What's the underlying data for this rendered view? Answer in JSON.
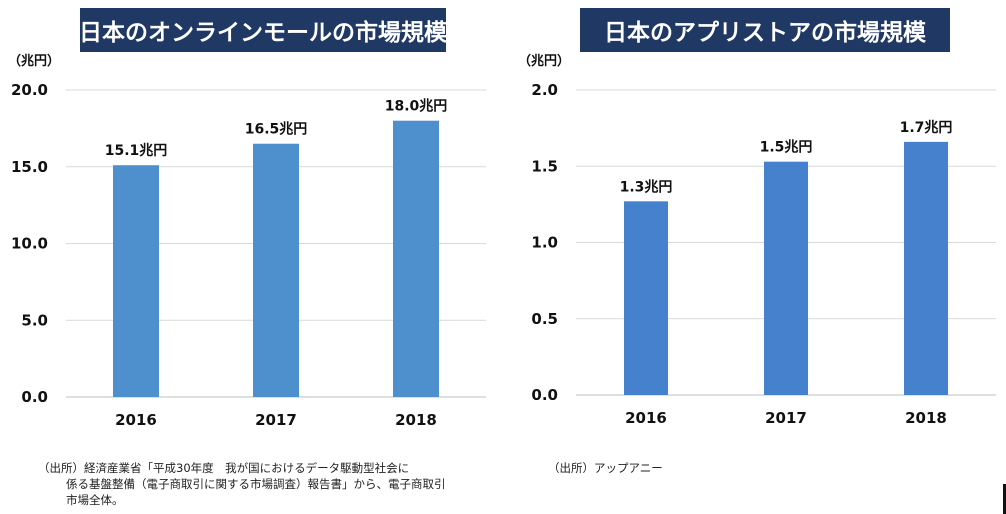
{
  "charts": [
    {
      "title": "日本のオンラインモールの市場規模",
      "unit": "（兆円）",
      "source_line1": "（出所）経済産業省「平成30年度　我が国におけるデータ駆動型社会に",
      "source_line2": "係る基盤整備（電子商取引に関する市場調査）報告書」から、電子商取引",
      "source_line3": "市場全体。"
    },
    {
      "title": "日本のアプリストアの市場規模",
      "unit": "（兆円）",
      "source_line1": "（出所）アップアニー"
    }
  ],
  "chart_data": [
    {
      "type": "bar",
      "title": "日本のオンラインモールの市場規模",
      "ylabel": "（兆円）",
      "categories": [
        "2016",
        "2017",
        "2018"
      ],
      "values": [
        15.1,
        16.5,
        18.0
      ],
      "data_labels": [
        "15.1兆円",
        "16.5兆円",
        "18.0兆円"
      ],
      "ylim": [
        0,
        20
      ],
      "yticks": [
        0,
        5,
        10,
        15,
        20
      ],
      "ytick_labels": [
        "0.0",
        "5.0",
        "10.0",
        "15.0",
        "20.0"
      ],
      "grid": true,
      "bar_color": "#4e8fce"
    },
    {
      "type": "bar",
      "title": "日本のアプリストアの市場規模",
      "ylabel": "（兆円）",
      "categories": [
        "2016",
        "2017",
        "2018"
      ],
      "values": [
        1.27,
        1.53,
        1.66
      ],
      "data_labels": [
        "1.3兆円",
        "1.5兆円",
        "1.7兆円"
      ],
      "ylim": [
        0,
        2
      ],
      "yticks": [
        0,
        0.5,
        1,
        1.5,
        2
      ],
      "ytick_labels": [
        "0.0",
        "0.5",
        "1.0",
        "1.5",
        "2.0"
      ],
      "grid": true,
      "bar_color": "#4581cc"
    }
  ],
  "colors": {
    "title_bg": "#1f3864",
    "title_fg": "#ffffff",
    "grid": "#d9d9d9",
    "axis": "#bfbfbf"
  }
}
